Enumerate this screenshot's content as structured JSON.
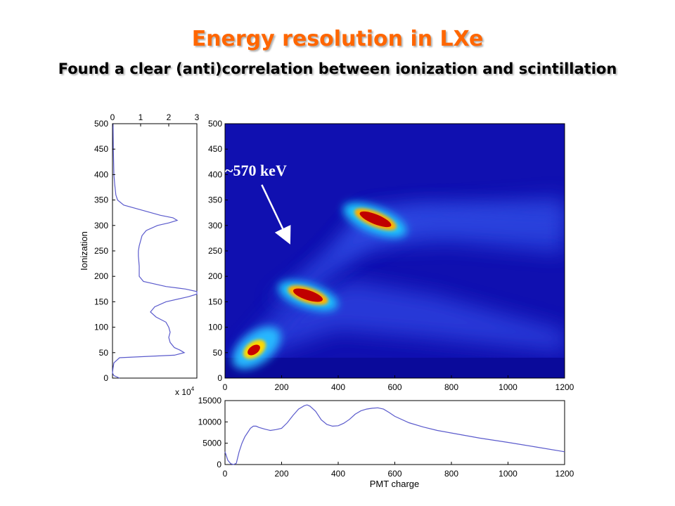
{
  "slide": {
    "title": "Energy resolution in LXe",
    "subtitle": "Found a clear (anti)correlation between ionization and scintillation"
  },
  "colors": {
    "title": "#ff6600",
    "curve": "#5a5acc",
    "background_2d": "#1010b0"
  },
  "chart_data": [
    {
      "type": "heatmap",
      "panel": "2d-histogram",
      "xlim": [
        0,
        1200
      ],
      "ylim": [
        0,
        500
      ],
      "xticks": [
        0,
        200,
        400,
        600,
        800,
        1000,
        1200
      ],
      "yticks": [
        0,
        50,
        100,
        150,
        200,
        250,
        300,
        350,
        400,
        450,
        500
      ],
      "colormap": "jet",
      "peaks": [
        {
          "x": 100,
          "y": 55,
          "intensity": 1.0
        },
        {
          "x": 290,
          "y": 170,
          "intensity": 1.0
        },
        {
          "x": 540,
          "y": 312,
          "intensity": 1.0
        }
      ],
      "annotation": {
        "text": "~570 keV",
        "arrow_from": [
          130,
          380
        ],
        "arrow_to": [
          220,
          275
        ]
      }
    },
    {
      "type": "line",
      "panel": "ionization-projection",
      "ylabel": "Ionization",
      "xlim": [
        0,
        3
      ],
      "ylim": [
        0,
        500
      ],
      "xticks": [
        0,
        1,
        2,
        3
      ],
      "yticks": [
        0,
        50,
        100,
        150,
        200,
        250,
        300,
        350,
        400,
        450,
        500
      ],
      "x_multiplier": "x 10",
      "x_multiplier_exp": "4",
      "y": [
        0,
        5,
        10,
        20,
        30,
        40,
        45,
        50,
        55,
        60,
        70,
        80,
        90,
        100,
        110,
        120,
        130,
        140,
        150,
        160,
        165,
        170,
        175,
        180,
        190,
        200,
        220,
        240,
        250,
        260,
        270,
        280,
        290,
        300,
        305,
        310,
        315,
        320,
        330,
        340,
        350,
        360,
        380,
        400,
        450,
        500
      ],
      "x": [
        0.25,
        0.05,
        0.0,
        0.02,
        0.05,
        0.25,
        2.2,
        2.55,
        2.4,
        2.2,
        2.05,
        2.0,
        2.05,
        2.0,
        1.9,
        1.55,
        1.35,
        1.5,
        1.9,
        2.7,
        3.0,
        3.0,
        2.6,
        1.9,
        1.1,
        0.95,
        0.95,
        0.92,
        0.92,
        0.95,
        1.0,
        1.05,
        1.2,
        1.6,
        2.0,
        2.3,
        2.15,
        1.7,
        1.05,
        0.4,
        0.18,
        0.12,
        0.08,
        0.05,
        0.03,
        0.02
      ]
    },
    {
      "type": "line",
      "panel": "pmt-charge-projection",
      "xlabel": "PMT charge",
      "xlim": [
        0,
        1200
      ],
      "ylim": [
        0,
        15000
      ],
      "xticks": [
        0,
        200,
        400,
        600,
        800,
        1000,
        1200
      ],
      "yticks": [
        0,
        5000,
        10000,
        15000
      ],
      "x": [
        0,
        10,
        20,
        30,
        40,
        50,
        60,
        70,
        80,
        90,
        100,
        110,
        120,
        140,
        160,
        180,
        200,
        220,
        240,
        260,
        280,
        290,
        300,
        320,
        340,
        360,
        380,
        400,
        420,
        440,
        460,
        480,
        500,
        520,
        540,
        560,
        580,
        600,
        650,
        700,
        750,
        800,
        900,
        1000,
        1100,
        1200
      ],
      "y": [
        3000,
        1000,
        200,
        0,
        300,
        3000,
        5000,
        6500,
        7500,
        8500,
        9000,
        9000,
        8700,
        8300,
        8000,
        8200,
        8500,
        9800,
        11500,
        13000,
        13800,
        14000,
        13700,
        12500,
        10500,
        9400,
        9000,
        9100,
        9700,
        10600,
        11800,
        12600,
        13000,
        13200,
        13300,
        13000,
        12200,
        11300,
        9800,
        8800,
        8000,
        7400,
        6200,
        5200,
        4100,
        3000
      ]
    }
  ]
}
